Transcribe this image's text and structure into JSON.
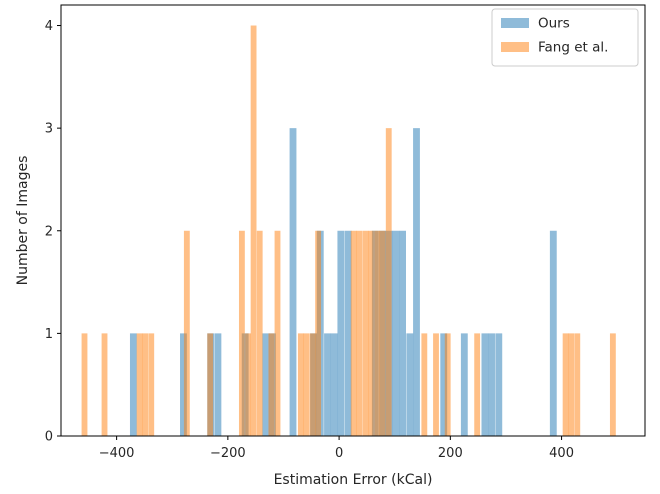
{
  "chart_data": {
    "type": "bar",
    "subtype": "overlapping-histogram",
    "title": "",
    "xlabel": "Estimation Error (kCal)",
    "ylabel": "Number of Images",
    "xlim": [
      -500,
      550
    ],
    "ylim": [
      0,
      4.2
    ],
    "xticks": [
      -400,
      -200,
      0,
      200,
      400
    ],
    "xtick_labels": [
      "−400",
      "−200",
      "0",
      "200",
      "400"
    ],
    "yticks": [
      0,
      1,
      2,
      3,
      4
    ],
    "ytick_labels": [
      "0",
      "1",
      "2",
      "3",
      "4"
    ],
    "grid": false,
    "legend_position": "top-right",
    "opacity": 0.5,
    "series": [
      {
        "name": "Ours",
        "color": "#1f77b4",
        "bin_width": 12.3,
        "bins": [
          {
            "x0": -376,
            "count": 1
          },
          {
            "x0": -286,
            "count": 1
          },
          {
            "x0": -237,
            "count": 1
          },
          {
            "x0": -224,
            "count": 1
          },
          {
            "x0": -175,
            "count": 1
          },
          {
            "x0": -138,
            "count": 1
          },
          {
            "x0": -126,
            "count": 1
          },
          {
            "x0": -89,
            "count": 3
          },
          {
            "x0": -52,
            "count": 1
          },
          {
            "x0": -40,
            "count": 2
          },
          {
            "x0": -27,
            "count": 1
          },
          {
            "x0": -15,
            "count": 1
          },
          {
            "x0": -3,
            "count": 2
          },
          {
            "x0": 10,
            "count": 2
          },
          {
            "x0": 59,
            "count": 2
          },
          {
            "x0": 72,
            "count": 2
          },
          {
            "x0": 84,
            "count": 2
          },
          {
            "x0": 96,
            "count": 2
          },
          {
            "x0": 108,
            "count": 2
          },
          {
            "x0": 121,
            "count": 1
          },
          {
            "x0": 133,
            "count": 3
          },
          {
            "x0": 182,
            "count": 1
          },
          {
            "x0": 219,
            "count": 1
          },
          {
            "x0": 256,
            "count": 1
          },
          {
            "x0": 268,
            "count": 1
          },
          {
            "x0": 281,
            "count": 1
          },
          {
            "x0": 379,
            "count": 2
          }
        ]
      },
      {
        "name": "Fang et al.",
        "color": "#ff7f0e",
        "bin_width": 10.5,
        "bins": [
          {
            "x0": -463,
            "count": 1
          },
          {
            "x0": -427,
            "count": 1
          },
          {
            "x0": -364,
            "count": 1
          },
          {
            "x0": -354,
            "count": 1
          },
          {
            "x0": -343,
            "count": 1
          },
          {
            "x0": -279,
            "count": 2
          },
          {
            "x0": -237,
            "count": 1
          },
          {
            "x0": -180,
            "count": 2
          },
          {
            "x0": -169,
            "count": 1
          },
          {
            "x0": -159,
            "count": 4
          },
          {
            "x0": -148,
            "count": 2
          },
          {
            "x0": -127,
            "count": 1
          },
          {
            "x0": -116,
            "count": 2
          },
          {
            "x0": -74,
            "count": 1
          },
          {
            "x0": -64,
            "count": 1
          },
          {
            "x0": -53,
            "count": 1
          },
          {
            "x0": -43,
            "count": 2
          },
          {
            "x0": 21,
            "count": 2
          },
          {
            "x0": 31,
            "count": 2
          },
          {
            "x0": 42,
            "count": 2
          },
          {
            "x0": 52,
            "count": 2
          },
          {
            "x0": 63,
            "count": 2
          },
          {
            "x0": 73,
            "count": 2
          },
          {
            "x0": 84,
            "count": 3
          },
          {
            "x0": 148,
            "count": 1
          },
          {
            "x0": 169,
            "count": 1
          },
          {
            "x0": 190,
            "count": 1
          },
          {
            "x0": 243,
            "count": 1
          },
          {
            "x0": 402,
            "count": 1
          },
          {
            "x0": 412,
            "count": 1
          },
          {
            "x0": 423,
            "count": 1
          },
          {
            "x0": 487,
            "count": 1
          }
        ]
      }
    ]
  }
}
